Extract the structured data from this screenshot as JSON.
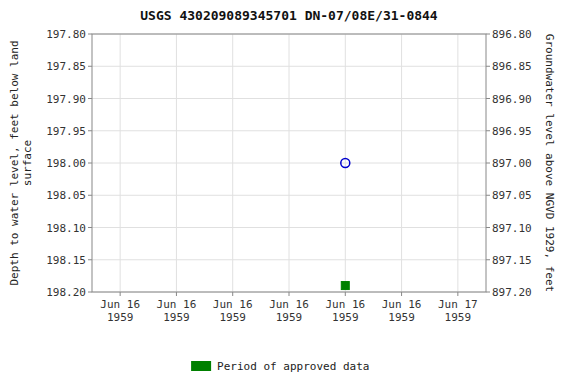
{
  "chart_data": {
    "type": "scatter",
    "title": "USGS 430209089345701 DN-07/08E/31-0844",
    "ylabel": "Depth to water level, feet below land\nsurface",
    "y2label": "Groundwater level above NGVD 1929, feet",
    "categories": [
      "Jun 16\n1959",
      "Jun 16\n1959",
      "Jun 16\n1959",
      "Jun 16\n1959",
      "Jun 16\n1959",
      "Jun 16\n1959",
      "Jun 17\n1959"
    ],
    "series": [
      {
        "color": "#0000cd",
        "marker": "open-circle",
        "values": [
          null,
          null,
          null,
          null,
          198.0,
          null,
          null
        ]
      },
      {
        "name": "Period of approved data",
        "color": "#008000",
        "marker": "square",
        "values": [
          null,
          null,
          null,
          null,
          198.19,
          null,
          null
        ]
      }
    ],
    "ylim": [
      198.2,
      197.8
    ],
    "yticks": [
      {
        "value": 197.8,
        "label": "197.80"
      },
      197.85,
      {
        "value": 197.9,
        "label": "197.90"
      },
      197.95,
      {
        "value": 198,
        "label": "198.00"
      },
      198.05,
      {
        "value": 198.1,
        "label": "198.10"
      },
      198.15,
      {
        "value": 198.2,
        "label": "198.20"
      }
    ],
    "y2lim": [
      897.2,
      896.8
    ],
    "y2ticks": [
      {
        "value": 897.2,
        "label": "897.20"
      },
      897.15,
      {
        "value": 897.1,
        "label": "897.10"
      },
      897.05,
      {
        "value": 897,
        "label": "897.00"
      },
      896.95,
      {
        "value": 896.9,
        "label": "896.90"
      },
      896.85,
      {
        "value": 896.8,
        "label": "896.80"
      }
    ],
    "grid": true,
    "legend": "bottom"
  }
}
